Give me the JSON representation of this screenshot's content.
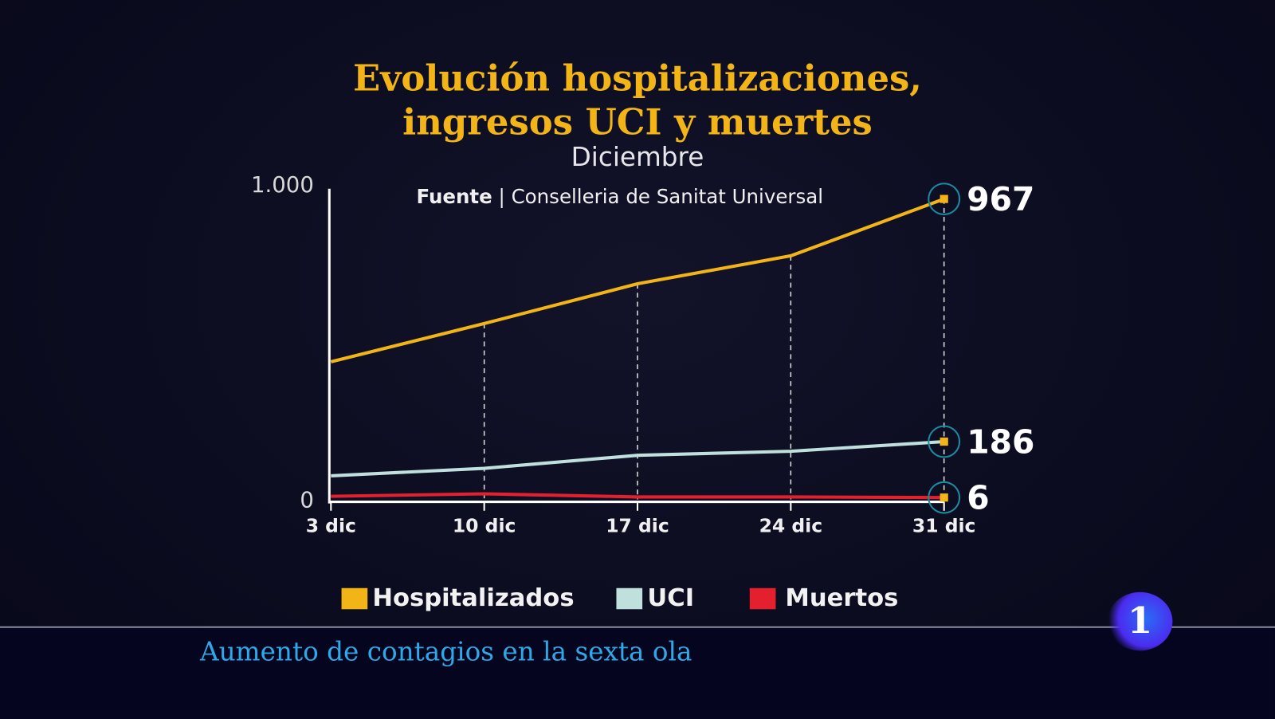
{
  "chart_data": {
    "type": "line",
    "title": "Evolución hospitalizaciones, ingresos UCI y muertes",
    "title_lines": [
      "Evolución hospitalizaciones,",
      "ingresos UCI y muertes"
    ],
    "subtitle": "Diciembre",
    "source_label": "Fuente",
    "source": "Conselleria de Sanitat Universal",
    "categories": [
      "3 dic",
      "10 dic",
      "17 dic",
      "24 dic",
      "31 dic"
    ],
    "ylim": [
      0,
      1000
    ],
    "y_ticks": [
      "0",
      "1.000"
    ],
    "grid": "dashed vertical lines at each date",
    "legend_position": "bottom",
    "series": [
      {
        "name": "Hospitalizados",
        "color": "#f2b416",
        "values": [
          443,
          566,
          694,
          784,
          967
        ],
        "end_label": "967"
      },
      {
        "name": "UCI",
        "color": "#bfe0dc",
        "values": [
          76,
          100,
          142,
          155,
          186
        ],
        "end_label": "186"
      },
      {
        "name": "Muertos",
        "color": "#e4202e",
        "values": [
          10,
          18,
          8,
          8,
          6
        ],
        "end_label": "6"
      }
    ]
  },
  "ticker": {
    "text": "Aumento de contagios en la sexta ola"
  },
  "logo": {
    "text": "1"
  }
}
